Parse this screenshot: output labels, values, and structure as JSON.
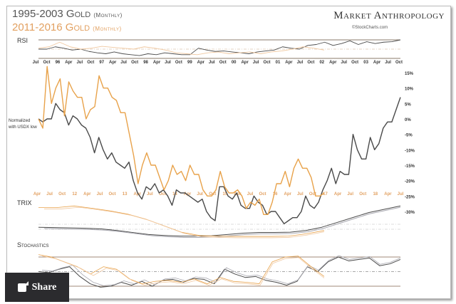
{
  "header": {
    "title1": "1995-2003 Gold",
    "title1_sub": "(Monthly)",
    "title2": "2011-2016 Gold",
    "title2_sub": "(Monthly)",
    "brand": "Market Anthropology",
    "credit": "©StockCharts.com"
  },
  "panels": {
    "rsi": "RSI",
    "trix": "TRIX",
    "stoch": "Stochastics",
    "note_line1": "Normalized",
    "note_line2": "with USDX low"
  },
  "share": {
    "label": "Share",
    "icon": "share-icon"
  },
  "colors": {
    "gray": "#4a4a4a",
    "orange": "#e8a24a",
    "gray_light": "#a8a8b0",
    "orange_light": "#f0c8a0"
  },
  "chart_data": {
    "type": "line",
    "ylim": [
      -30,
      15
    ],
    "yticks": [
      "15%",
      "10%",
      "5%",
      "0%",
      "-5%",
      "-10%",
      "-15%",
      "-20%",
      "-25%",
      "-30%"
    ],
    "ytick_values": [
      15,
      10,
      5,
      0,
      -5,
      -10,
      -15,
      -20,
      -25,
      -30
    ],
    "top_xticks": [
      "Jul",
      "Oct",
      "96",
      "Apr",
      "Jul",
      "Oct",
      "97",
      "Apr",
      "Jul",
      "Oct",
      "98",
      "Apr",
      "Jul",
      "Oct",
      "99",
      "Apr",
      "Jul",
      "Oct",
      "00",
      "Apr",
      "Jul",
      "Oct",
      "01",
      "Apr",
      "Jul",
      "Oct",
      "02",
      "Apr",
      "Jul",
      "Oct",
      "03",
      "Apr",
      "Jul",
      "Oct"
    ],
    "bottom_xticks": [
      "Apr",
      "Jul",
      "Oct",
      "12",
      "Apr",
      "Jul",
      "Oct",
      "13",
      "Apr",
      "Jul",
      "Oct",
      "14",
      "Apr",
      "Jul",
      "Oct",
      "15",
      "Apr",
      "Jul",
      "Oct",
      "16",
      "Apr",
      "Jul",
      "Oct",
      "17",
      "Apr",
      "Jul",
      "Oct",
      "18",
      "Apr",
      "Jul"
    ],
    "series": [
      {
        "name": "1995-2003 Gold",
        "color": "#4a4a4a",
        "values": [
          0,
          -1,
          0,
          0,
          5,
          3,
          2,
          -2,
          1,
          0,
          -2,
          -3,
          -6,
          -11,
          -6,
          -10,
          -13,
          -11,
          -14,
          -15,
          -16,
          -14,
          -20,
          -24,
          -26,
          -22,
          -23,
          -21,
          -24,
          -23,
          -25,
          -28,
          -23,
          -24,
          -24,
          -25,
          -26,
          -27,
          -26,
          -30,
          -32,
          -33,
          -22,
          -22,
          -25,
          -26,
          -24,
          -28,
          -29,
          -29,
          -25,
          -27,
          -28,
          -31,
          -30,
          -30,
          -32,
          -34,
          -33,
          -32,
          -32,
          -30,
          -25,
          -28,
          -29,
          -27,
          -23,
          -20,
          -16,
          -21,
          -17,
          -18,
          -18,
          -5,
          -10,
          -13,
          -13,
          -6,
          -10,
          -8,
          -3,
          -1,
          -1,
          3,
          7
        ]
      },
      {
        "name": "2011-2016 Gold",
        "color": "#e8a24a",
        "values": [
          0,
          -3,
          17,
          5,
          10,
          13,
          1,
          12,
          9,
          7,
          7,
          0,
          3,
          4,
          14,
          10,
          10,
          7,
          6,
          2,
          2,
          -5,
          -12,
          -21,
          -15,
          -11,
          -15,
          -15,
          -19,
          -23,
          -20,
          -15,
          -18,
          -17,
          -20,
          -15,
          -18,
          -18,
          -23,
          -25,
          -25,
          -23,
          -17,
          -22,
          -24,
          -24,
          -23,
          -25,
          -29,
          -27,
          -28,
          -26,
          -31,
          -31,
          -27,
          -21,
          -21,
          -17,
          -22,
          -16,
          -13,
          -16,
          -16,
          -19,
          -25,
          -25,
          -24
        ]
      }
    ],
    "indicators": {
      "rsi": {
        "levels": [
          70,
          50,
          30
        ],
        "gray": [
          50,
          50,
          55,
          52,
          48,
          50,
          45,
          42,
          40,
          44,
          40,
          38,
          36,
          40,
          38,
          42,
          40,
          38,
          38,
          52,
          48,
          45,
          46,
          44,
          42,
          40,
          44,
          46,
          48,
          55,
          52,
          50,
          58,
          60,
          65,
          58,
          62,
          68,
          60,
          66,
          62,
          65,
          66,
          70
        ],
        "orange": [
          52,
          55,
          65,
          55,
          50,
          52,
          56,
          54,
          52,
          50,
          55,
          52,
          48,
          42,
          40,
          38,
          42,
          44,
          40,
          42,
          44,
          40,
          44,
          46,
          50,
          55,
          52,
          48
        ]
      },
      "trix": {
        "gray": [
          30,
          29,
          28,
          27,
          25,
          20,
          14,
          8,
          5,
          3,
          3,
          4,
          8,
          12,
          14,
          14,
          15,
          20,
          30,
          45,
          60,
          75,
          85,
          95
        ],
        "orange": [
          90,
          90,
          95,
          88,
          80,
          70,
          55,
          35,
          15,
          5,
          3,
          2,
          2,
          2,
          3,
          10,
          20
        ]
      },
      "stochastics": {
        "levels": [
          80,
          50,
          20
        ],
        "gray": [
          50,
          48,
          55,
          60,
          40,
          25,
          18,
          20,
          28,
          22,
          30,
          20,
          32,
          34,
          28,
          36,
          34,
          25,
          55,
          45,
          38,
          40,
          32,
          28,
          22,
          30,
          60,
          50,
          70,
          80,
          72,
          75,
          78,
          62,
          66,
          75
        ],
        "orange": [
          85,
          80,
          70,
          60,
          45,
          60,
          55,
          35,
          25,
          30,
          32,
          28,
          35,
          25,
          38,
          30,
          28,
          25,
          70,
          80,
          82,
          60,
          40
        ]
      }
    }
  }
}
